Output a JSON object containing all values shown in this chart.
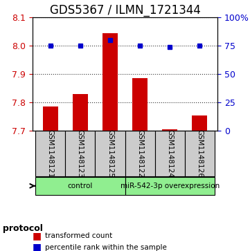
{
  "title": "GDS5367 / ILMN_1721344",
  "samples": [
    "GSM1148121",
    "GSM1148123",
    "GSM1148125",
    "GSM1148122",
    "GSM1148124",
    "GSM1148126"
  ],
  "transformed_counts": [
    7.785,
    7.83,
    8.045,
    7.885,
    7.705,
    7.755
  ],
  "percentile_ranks": [
    75,
    75,
    80,
    75,
    74,
    75
  ],
  "ylim_left": [
    7.7,
    8.1
  ],
  "yticks_left": [
    7.7,
    7.8,
    7.9,
    8.0,
    8.1
  ],
  "ylim_right": [
    0,
    100
  ],
  "yticks_right": [
    0,
    25,
    50,
    75,
    100
  ],
  "bar_color": "#cc0000",
  "dot_color": "#0000cc",
  "groups": [
    {
      "label": "control",
      "samples": [
        0,
        1,
        2
      ],
      "color": "#90ee90"
    },
    {
      "label": "miR-542-3p overexpression",
      "samples": [
        3,
        4,
        5
      ],
      "color": "#90ee90"
    }
  ],
  "protocol_label": "protocol",
  "legend_bar_label": "transformed count",
  "legend_dot_label": "percentile rank within the sample",
  "bar_width": 0.5,
  "dotted_line_color": "#333333",
  "grid_linestyle": "dotted",
  "axis_label_color_left": "#cc0000",
  "axis_label_color_right": "#0000cc",
  "sample_box_color": "#cccccc",
  "title_fontsize": 12,
  "tick_fontsize": 9,
  "sample_fontsize": 7.5
}
